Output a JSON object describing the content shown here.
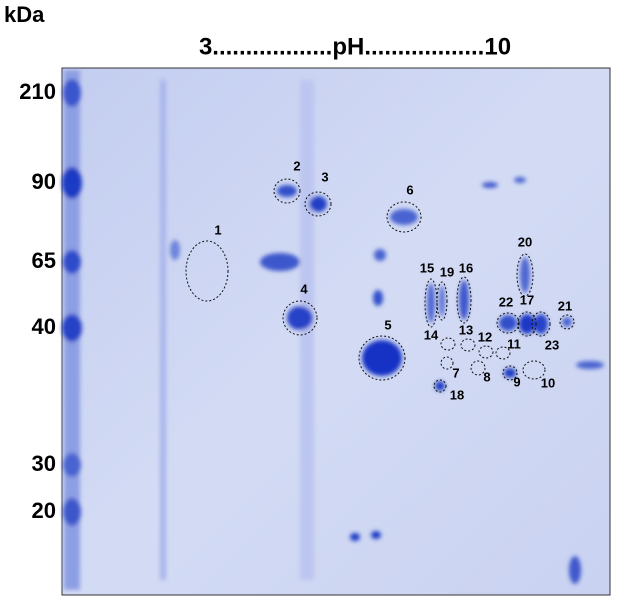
{
  "header": {
    "unit": "kDa",
    "ph_range": "3..................pH..................10"
  },
  "markers": [
    "210",
    "90",
    "65",
    "40",
    "30",
    "20"
  ],
  "spots": [
    "1",
    "2",
    "3",
    "4",
    "5",
    "6",
    "7",
    "8",
    "9",
    "10",
    "11",
    "12",
    "13",
    "14",
    "15",
    "16",
    "17",
    "18",
    "19",
    "20",
    "21",
    "22",
    "23"
  ]
}
